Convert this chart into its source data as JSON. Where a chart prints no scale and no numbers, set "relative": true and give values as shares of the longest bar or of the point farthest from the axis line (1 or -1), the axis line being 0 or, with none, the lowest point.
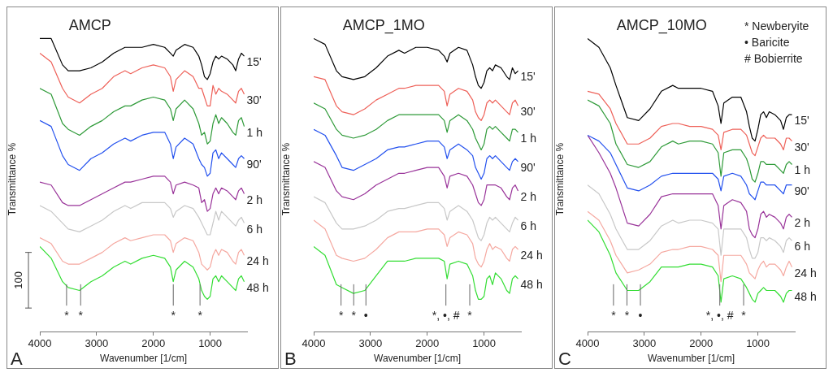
{
  "chart_data": [
    {
      "type": "line",
      "title": "AMCP",
      "xlabel": "Wavenumber [1/cm]",
      "ylabel": "Transmittance %",
      "relative": true,
      "marker": "none",
      "xlim": [
        4000,
        350
      ],
      "xticks": [
        4000,
        3000,
        2000,
        1000
      ],
      "x": [
        4000,
        3800,
        3600,
        3500,
        3300,
        3100,
        2900,
        2700,
        2500,
        2400,
        2200,
        2000,
        1800,
        1700,
        1650,
        1600,
        1450,
        1300,
        1200,
        1150,
        1100,
        1050,
        1000,
        950,
        900,
        850,
        800,
        700,
        600,
        550,
        500,
        450,
        400
      ],
      "series": [
        {
          "name": "15'",
          "color": "#000000",
          "values": [
            1.0,
            1.0,
            0.91,
            0.89,
            0.89,
            0.9,
            0.92,
            0.95,
            0.97,
            0.97,
            0.97,
            0.98,
            0.97,
            0.95,
            0.94,
            0.96,
            0.98,
            0.97,
            0.94,
            0.91,
            0.87,
            0.86,
            0.88,
            0.92,
            0.94,
            0.93,
            0.94,
            0.93,
            0.91,
            0.89,
            0.93,
            0.95,
            0.94
          ]
        },
        {
          "name": "30'",
          "color": "#ee6058",
          "values": [
            0.95,
            0.92,
            0.83,
            0.8,
            0.78,
            0.81,
            0.83,
            0.87,
            0.89,
            0.88,
            0.9,
            0.91,
            0.9,
            0.87,
            0.82,
            0.86,
            0.89,
            0.87,
            0.83,
            0.83,
            0.8,
            0.77,
            0.77,
            0.84,
            0.81,
            0.83,
            0.82,
            0.81,
            0.79,
            0.78,
            0.82,
            0.83,
            0.81
          ]
        },
        {
          "name": "1 h",
          "color": "#2e9a38",
          "values": [
            0.83,
            0.81,
            0.71,
            0.69,
            0.67,
            0.7,
            0.72,
            0.75,
            0.77,
            0.77,
            0.79,
            0.8,
            0.79,
            0.76,
            0.72,
            0.76,
            0.79,
            0.76,
            0.71,
            0.67,
            0.68,
            0.64,
            0.65,
            0.71,
            0.74,
            0.71,
            0.73,
            0.71,
            0.68,
            0.67,
            0.72,
            0.73,
            0.7
          ]
        },
        {
          "name": "90'",
          "color": "#2250ee",
          "values": [
            0.72,
            0.7,
            0.6,
            0.57,
            0.55,
            0.59,
            0.61,
            0.64,
            0.66,
            0.65,
            0.67,
            0.68,
            0.68,
            0.64,
            0.59,
            0.63,
            0.66,
            0.64,
            0.59,
            0.57,
            0.56,
            0.53,
            0.54,
            0.61,
            0.62,
            0.59,
            0.61,
            0.59,
            0.57,
            0.56,
            0.59,
            0.6,
            0.59
          ]
        },
        {
          "name": "2 h",
          "color": "#993399",
          "values": [
            0.51,
            0.5,
            0.44,
            0.43,
            0.43,
            0.45,
            0.47,
            0.49,
            0.51,
            0.51,
            0.52,
            0.53,
            0.53,
            0.51,
            0.47,
            0.5,
            0.51,
            0.5,
            0.49,
            0.44,
            0.45,
            0.41,
            0.42,
            0.47,
            0.49,
            0.47,
            0.49,
            0.48,
            0.46,
            0.45,
            0.48,
            0.49,
            0.47
          ]
        },
        {
          "name": "6 h",
          "color": "#c8c8c8",
          "values": [
            0.43,
            0.41,
            0.37,
            0.35,
            0.34,
            0.36,
            0.38,
            0.41,
            0.43,
            0.42,
            0.44,
            0.44,
            0.44,
            0.42,
            0.39,
            0.41,
            0.43,
            0.42,
            0.39,
            0.37,
            0.35,
            0.33,
            0.33,
            0.37,
            0.41,
            0.38,
            0.41,
            0.39,
            0.37,
            0.36,
            0.38,
            0.39,
            0.37
          ]
        },
        {
          "name": "24 h",
          "color": "#f5a8a0",
          "values": [
            0.32,
            0.3,
            0.24,
            0.23,
            0.23,
            0.25,
            0.27,
            0.3,
            0.32,
            0.31,
            0.32,
            0.33,
            0.33,
            0.31,
            0.27,
            0.3,
            0.32,
            0.31,
            0.27,
            0.23,
            0.22,
            0.21,
            0.22,
            0.26,
            0.28,
            0.26,
            0.28,
            0.27,
            0.24,
            0.23,
            0.27,
            0.28,
            0.26
          ]
        },
        {
          "name": "48 h",
          "color": "#33dd33",
          "values": [
            0.29,
            0.25,
            0.17,
            0.15,
            0.14,
            0.17,
            0.19,
            0.22,
            0.24,
            0.23,
            0.25,
            0.26,
            0.25,
            0.22,
            0.17,
            0.21,
            0.24,
            0.22,
            0.18,
            0.14,
            0.12,
            0.11,
            0.12,
            0.18,
            0.19,
            0.17,
            0.19,
            0.17,
            0.15,
            0.14,
            0.18,
            0.19,
            0.17
          ]
        }
      ],
      "annotations": [
        "A",
        "100",
        "*",
        "*",
        "*",
        "*"
      ]
    },
    {
      "type": "line",
      "title": "AMCP_1MO",
      "xlabel": "Wavenumber [1/cm]",
      "ylabel": "Transmittance %",
      "relative": true,
      "marker": "none",
      "xlim": [
        4000,
        350
      ],
      "xticks": [
        4000,
        3000,
        2000,
        1000
      ],
      "x": [
        4000,
        3800,
        3600,
        3500,
        3300,
        3100,
        2900,
        2700,
        2500,
        2400,
        2200,
        2000,
        1800,
        1700,
        1650,
        1600,
        1450,
        1300,
        1200,
        1150,
        1100,
        1050,
        1000,
        950,
        900,
        850,
        800,
        700,
        600,
        550,
        500,
        450,
        400
      ],
      "series": [
        {
          "name": "15'",
          "color": "#000000",
          "values": [
            1.0,
            0.98,
            0.89,
            0.87,
            0.86,
            0.87,
            0.9,
            0.94,
            0.96,
            0.95,
            0.97,
            0.97,
            0.96,
            0.94,
            0.92,
            0.95,
            0.97,
            0.96,
            0.91,
            0.87,
            0.84,
            0.83,
            0.85,
            0.89,
            0.9,
            0.89,
            0.91,
            0.9,
            0.87,
            0.86,
            0.9,
            0.88,
            0.89
          ]
        },
        {
          "name": "30'",
          "color": "#ee6058",
          "values": [
            0.87,
            0.86,
            0.77,
            0.75,
            0.74,
            0.76,
            0.79,
            0.81,
            0.83,
            0.83,
            0.84,
            0.84,
            0.84,
            0.82,
            0.77,
            0.81,
            0.83,
            0.82,
            0.79,
            0.75,
            0.73,
            0.72,
            0.74,
            0.78,
            0.79,
            0.78,
            0.79,
            0.77,
            0.75,
            0.74,
            0.78,
            0.79,
            0.77
          ]
        },
        {
          "name": "1 h",
          "color": "#2e9a38",
          "values": [
            0.78,
            0.76,
            0.69,
            0.67,
            0.66,
            0.67,
            0.69,
            0.72,
            0.74,
            0.74,
            0.74,
            0.74,
            0.74,
            0.72,
            0.68,
            0.72,
            0.74,
            0.72,
            0.69,
            0.66,
            0.64,
            0.62,
            0.64,
            0.69,
            0.7,
            0.69,
            0.7,
            0.68,
            0.66,
            0.65,
            0.69,
            0.69,
            0.68
          ]
        },
        {
          "name": "90'",
          "color": "#2250ee",
          "values": [
            0.69,
            0.67,
            0.6,
            0.56,
            0.55,
            0.57,
            0.59,
            0.62,
            0.63,
            0.63,
            0.64,
            0.65,
            0.65,
            0.63,
            0.59,
            0.62,
            0.64,
            0.62,
            0.6,
            0.56,
            0.54,
            0.52,
            0.54,
            0.59,
            0.6,
            0.59,
            0.6,
            0.58,
            0.56,
            0.55,
            0.58,
            0.59,
            0.58
          ]
        },
        {
          "name": "2 h",
          "color": "#993399",
          "values": [
            0.58,
            0.56,
            0.48,
            0.46,
            0.45,
            0.47,
            0.5,
            0.52,
            0.54,
            0.54,
            0.55,
            0.56,
            0.56,
            0.53,
            0.49,
            0.53,
            0.54,
            0.53,
            0.5,
            0.47,
            0.44,
            0.43,
            0.45,
            0.5,
            0.5,
            0.5,
            0.5,
            0.49,
            0.46,
            0.45,
            0.49,
            0.5,
            0.48
          ]
        },
        {
          "name": "6 h",
          "color": "#c8c8c8",
          "values": [
            0.46,
            0.44,
            0.37,
            0.35,
            0.35,
            0.36,
            0.38,
            0.41,
            0.42,
            0.42,
            0.43,
            0.44,
            0.44,
            0.42,
            0.38,
            0.41,
            0.43,
            0.41,
            0.38,
            0.35,
            0.32,
            0.31,
            0.33,
            0.37,
            0.39,
            0.38,
            0.39,
            0.37,
            0.35,
            0.34,
            0.37,
            0.39,
            0.38
          ]
        },
        {
          "name": "24 h",
          "color": "#f5a8a0",
          "values": [
            0.38,
            0.35,
            0.26,
            0.25,
            0.24,
            0.25,
            0.28,
            0.32,
            0.34,
            0.34,
            0.34,
            0.35,
            0.35,
            0.33,
            0.29,
            0.32,
            0.34,
            0.33,
            0.3,
            0.25,
            0.23,
            0.22,
            0.24,
            0.28,
            0.3,
            0.28,
            0.29,
            0.28,
            0.25,
            0.24,
            0.28,
            0.29,
            0.28
          ]
        },
        {
          "name": "48 h",
          "color": "#33dd33",
          "values": [
            0.29,
            0.26,
            0.16,
            0.15,
            0.13,
            0.14,
            0.19,
            0.24,
            0.24,
            0.24,
            0.25,
            0.25,
            0.25,
            0.24,
            0.18,
            0.23,
            0.24,
            0.23,
            0.19,
            0.14,
            0.11,
            0.11,
            0.12,
            0.18,
            0.19,
            0.16,
            0.2,
            0.18,
            0.14,
            0.13,
            0.18,
            0.19,
            0.18
          ]
        }
      ],
      "annotations": [
        "B",
        "*",
        "*",
        "•",
        "*, •, #",
        "*"
      ]
    },
    {
      "type": "line",
      "title": "AMCP_10MO",
      "xlabel": "Wavenumber [1/cm]",
      "ylabel": "Transmittance %",
      "relative": true,
      "marker": "none",
      "xlim": [
        4000,
        350
      ],
      "xticks": [
        4000,
        3000,
        2000,
        1000
      ],
      "x": [
        4000,
        3800,
        3600,
        3500,
        3300,
        3100,
        2900,
        2700,
        2500,
        2400,
        2200,
        2000,
        1800,
        1700,
        1650,
        1600,
        1450,
        1300,
        1200,
        1150,
        1100,
        1050,
        1000,
        950,
        900,
        850,
        800,
        700,
        600,
        550,
        500,
        450,
        400
      ],
      "series": [
        {
          "name": "15'",
          "color": "#000000",
          "values": [
            1.0,
            0.97,
            0.9,
            0.84,
            0.73,
            0.72,
            0.76,
            0.82,
            0.84,
            0.83,
            0.83,
            0.83,
            0.82,
            0.77,
            0.71,
            0.78,
            0.8,
            0.8,
            0.75,
            0.7,
            0.66,
            0.65,
            0.69,
            0.74,
            0.75,
            0.73,
            0.75,
            0.74,
            0.72,
            0.69,
            0.73,
            0.74,
            0.74
          ]
        },
        {
          "name": "30'",
          "color": "#ee6058",
          "values": [
            0.82,
            0.81,
            0.76,
            0.71,
            0.64,
            0.64,
            0.66,
            0.7,
            0.71,
            0.71,
            0.7,
            0.7,
            0.69,
            0.67,
            0.62,
            0.68,
            0.69,
            0.69,
            0.67,
            0.64,
            0.61,
            0.6,
            0.63,
            0.66,
            0.67,
            0.66,
            0.66,
            0.66,
            0.64,
            0.62,
            0.66,
            0.66,
            0.65
          ]
        },
        {
          "name": "1 h",
          "color": "#2e9a38",
          "values": [
            0.79,
            0.77,
            0.71,
            0.64,
            0.57,
            0.56,
            0.58,
            0.63,
            0.65,
            0.64,
            0.65,
            0.65,
            0.64,
            0.61,
            0.53,
            0.61,
            0.62,
            0.62,
            0.59,
            0.56,
            0.52,
            0.51,
            0.54,
            0.58,
            0.58,
            0.57,
            0.57,
            0.57,
            0.55,
            0.54,
            0.57,
            0.58,
            0.57
          ]
        },
        {
          "name": "90'",
          "color": "#2250ee",
          "values": [
            0.67,
            0.65,
            0.61,
            0.57,
            0.49,
            0.48,
            0.5,
            0.53,
            0.54,
            0.54,
            0.54,
            0.54,
            0.54,
            0.52,
            0.48,
            0.53,
            0.54,
            0.53,
            0.5,
            0.47,
            0.46,
            0.45,
            0.48,
            0.51,
            0.51,
            0.5,
            0.5,
            0.5,
            0.48,
            0.47,
            0.5,
            0.5,
            0.5
          ]
        },
        {
          "name": "2 h",
          "color": "#993399",
          "values": [
            0.67,
            0.61,
            0.54,
            0.49,
            0.37,
            0.36,
            0.4,
            0.46,
            0.47,
            0.47,
            0.47,
            0.47,
            0.47,
            0.43,
            0.35,
            0.43,
            0.45,
            0.44,
            0.41,
            0.35,
            0.33,
            0.32,
            0.35,
            0.4,
            0.41,
            0.39,
            0.4,
            0.39,
            0.37,
            0.35,
            0.39,
            0.4,
            0.39
          ]
        },
        {
          "name": "6 h",
          "color": "#c8c8c8",
          "values": [
            0.5,
            0.47,
            0.4,
            0.35,
            0.28,
            0.28,
            0.31,
            0.36,
            0.38,
            0.37,
            0.38,
            0.38,
            0.37,
            0.35,
            0.26,
            0.35,
            0.35,
            0.35,
            0.32,
            0.28,
            0.25,
            0.25,
            0.27,
            0.32,
            0.32,
            0.31,
            0.32,
            0.31,
            0.29,
            0.27,
            0.31,
            0.32,
            0.31
          ]
        },
        {
          "name": "24 h",
          "color": "#f5a8a0",
          "values": [
            0.41,
            0.38,
            0.31,
            0.26,
            0.2,
            0.21,
            0.23,
            0.27,
            0.28,
            0.28,
            0.29,
            0.29,
            0.28,
            0.26,
            0.17,
            0.26,
            0.26,
            0.26,
            0.23,
            0.2,
            0.19,
            0.18,
            0.21,
            0.23,
            0.24,
            0.22,
            0.23,
            0.23,
            0.21,
            0.19,
            0.22,
            0.24,
            0.22
          ]
        },
        {
          "name": "48 h",
          "color": "#33dd33",
          "values": [
            0.38,
            0.34,
            0.26,
            0.2,
            0.14,
            0.14,
            0.17,
            0.22,
            0.22,
            0.22,
            0.23,
            0.23,
            0.22,
            0.19,
            0.1,
            0.18,
            0.19,
            0.18,
            0.15,
            0.13,
            0.11,
            0.1,
            0.13,
            0.14,
            0.15,
            0.14,
            0.14,
            0.14,
            0.12,
            0.1,
            0.13,
            0.14,
            0.14
          ]
        }
      ],
      "annotations": [
        "C",
        "* Newberyite",
        "• Baricite",
        "# Bobierrite",
        "*",
        "*",
        "•",
        "*, •, #",
        "*"
      ]
    }
  ]
}
